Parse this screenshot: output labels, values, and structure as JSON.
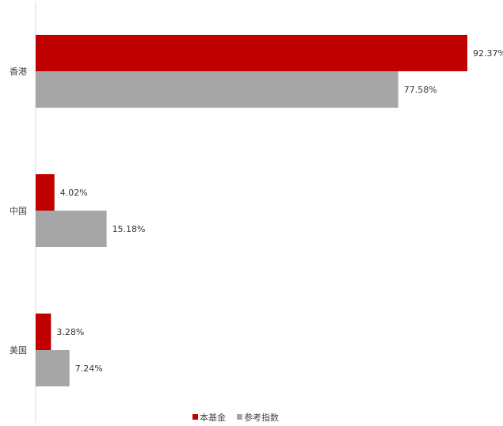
{
  "chart_data": {
    "type": "bar",
    "orientation": "horizontal",
    "categories": [
      "香港",
      "中国",
      "美国"
    ],
    "series": [
      {
        "name": "本基金",
        "values": [
          92.37,
          4.02,
          3.28
        ],
        "labels": [
          "92.37%",
          "4.02%",
          "3.28%"
        ],
        "color": "#C00000"
      },
      {
        "name": "参考指数",
        "values": [
          77.58,
          15.18,
          7.24
        ],
        "labels": [
          "77.58%",
          "15.18%",
          "7.24%"
        ],
        "color": "#A6A6A6"
      }
    ],
    "value_unit": "%",
    "xlim": [
      0,
      100
    ],
    "grid": false,
    "legend_position": "bottom"
  }
}
